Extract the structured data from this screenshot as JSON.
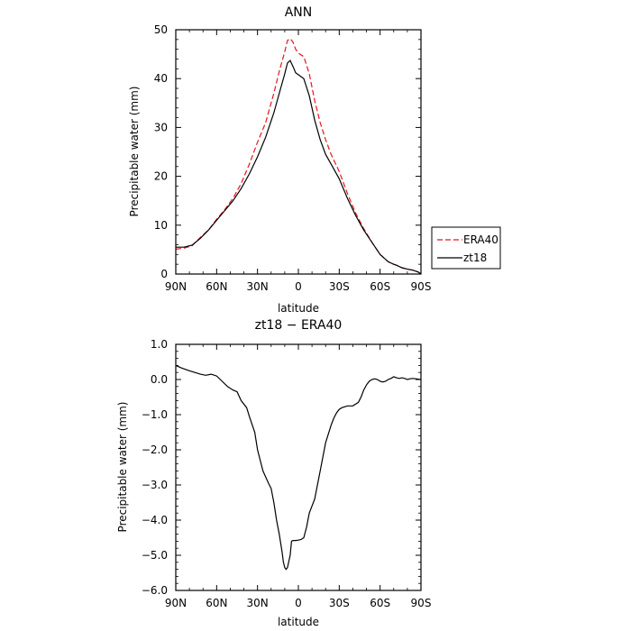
{
  "chart_data": [
    {
      "type": "line",
      "title": "ANN",
      "xlabel": "latitude",
      "ylabel": "Precipitable water (mm)",
      "x_ticks": [
        {
          "value": -90,
          "label": "90N"
        },
        {
          "value": -60,
          "label": "60N"
        },
        {
          "value": -30,
          "label": "30N"
        },
        {
          "value": 0,
          "label": "0"
        },
        {
          "value": 30,
          "label": "30S"
        },
        {
          "value": 60,
          "label": "60S"
        },
        {
          "value": 90,
          "label": "90S"
        }
      ],
      "y_ticks": [
        {
          "value": 0,
          "label": "0"
        },
        {
          "value": 10,
          "label": "10"
        },
        {
          "value": 20,
          "label": "20"
        },
        {
          "value": 30,
          "label": "30"
        },
        {
          "value": 40,
          "label": "40"
        },
        {
          "value": 50,
          "label": "50"
        }
      ],
      "xlim": [
        -90,
        90
      ],
      "ylim": [
        0,
        50
      ],
      "grid": false,
      "legend_position": "right",
      "series": [
        {
          "name": "ERA40",
          "color": "#e8141c",
          "dash": "dashed",
          "x": [
            -90,
            -84,
            -78,
            -72,
            -66,
            -60,
            -54,
            -48,
            -42,
            -36,
            -30,
            -24,
            -18,
            -14,
            -10,
            -8,
            -6,
            -4,
            -2,
            0,
            4,
            8,
            12,
            16,
            20,
            24,
            30,
            36,
            42,
            48,
            54,
            60,
            66,
            70,
            72,
            76,
            80,
            84,
            88,
            90
          ],
          "y": [
            5.1,
            5.3,
            5.8,
            7.5,
            9.0,
            11.2,
            13.2,
            15.5,
            18.5,
            22.5,
            27.0,
            31.0,
            37.0,
            41.5,
            45.5,
            47.8,
            48.2,
            47.5,
            46.0,
            45.2,
            44.5,
            41.0,
            35.5,
            31.0,
            27.5,
            24.5,
            21.0,
            16.5,
            12.5,
            9.3,
            6.5,
            4.0,
            2.5,
            2.0,
            1.8,
            1.3,
            1.0,
            0.8,
            0.4,
            0.0
          ]
        },
        {
          "name": "zt18",
          "color": "#000000",
          "dash": "solid",
          "x": [
            -90,
            -84,
            -78,
            -72,
            -66,
            -60,
            -54,
            -48,
            -42,
            -36,
            -30,
            -24,
            -18,
            -14,
            -10,
            -8,
            -6,
            -4,
            -2,
            0,
            4,
            8,
            12,
            16,
            20,
            24,
            30,
            36,
            42,
            48,
            54,
            60,
            66,
            70,
            72,
            76,
            80,
            84,
            88,
            90
          ],
          "y": [
            5.5,
            5.5,
            5.9,
            7.3,
            9.0,
            11.0,
            13.0,
            15.0,
            17.5,
            20.5,
            24.0,
            28.0,
            33.0,
            37.0,
            41.0,
            43.2,
            43.7,
            42.5,
            41.2,
            40.8,
            40.0,
            36.5,
            31.5,
            27.5,
            24.5,
            22.5,
            19.5,
            15.5,
            12.0,
            9.0,
            6.5,
            4.0,
            2.5,
            2.0,
            1.8,
            1.3,
            1.0,
            0.8,
            0.4,
            0.0
          ]
        }
      ]
    },
    {
      "type": "line",
      "title": "zt18 − ERA40",
      "xlabel": "latitude",
      "ylabel": "Precipitable water (mm)",
      "x_ticks": [
        {
          "value": -90,
          "label": "90N"
        },
        {
          "value": -60,
          "label": "60N"
        },
        {
          "value": -30,
          "label": "30N"
        },
        {
          "value": 0,
          "label": "0"
        },
        {
          "value": 30,
          "label": "30S"
        },
        {
          "value": 60,
          "label": "60S"
        },
        {
          "value": 90,
          "label": "90S"
        }
      ],
      "y_ticks": [
        {
          "value": 1.0,
          "label": "1.0"
        },
        {
          "value": 0.0,
          "label": "0.0"
        },
        {
          "value": -1.0,
          "label": "−1.0"
        },
        {
          "value": -2.0,
          "label": "−2.0"
        },
        {
          "value": -3.0,
          "label": "−3.0"
        },
        {
          "value": -4.0,
          "label": "−4.0"
        },
        {
          "value": -5.0,
          "label": "−5.0"
        },
        {
          "value": -6.0,
          "label": "−6.0"
        }
      ],
      "xlim": [
        -90,
        90
      ],
      "ylim": [
        -6,
        1
      ],
      "grid": false,
      "series": [
        {
          "color": "#000000",
          "dash": "solid",
          "x": [
            -90,
            -86,
            -80,
            -76,
            -72,
            -68,
            -64,
            -60,
            -56,
            -52,
            -48,
            -45,
            -42,
            -38,
            -36,
            -32,
            -30,
            -26,
            -22,
            -20,
            -18,
            -16,
            -14,
            -12,
            -11,
            -10,
            -9,
            -8,
            -6,
            -5,
            -4,
            -2,
            0,
            2,
            4,
            6,
            8,
            12,
            16,
            20,
            24,
            26,
            28,
            30,
            32,
            36,
            40,
            44,
            46,
            48,
            50,
            52,
            54,
            56,
            58,
            60,
            62,
            64,
            66,
            68,
            70,
            72,
            74,
            76,
            78,
            80,
            82,
            84,
            86,
            88,
            90
          ],
          "y": [
            0.4,
            0.33,
            0.25,
            0.2,
            0.15,
            0.12,
            0.15,
            0.1,
            -0.05,
            -0.2,
            -0.3,
            -0.35,
            -0.6,
            -0.8,
            -1.05,
            -1.5,
            -2.0,
            -2.6,
            -2.95,
            -3.1,
            -3.5,
            -4.0,
            -4.4,
            -4.9,
            -5.2,
            -5.35,
            -5.4,
            -5.35,
            -5.0,
            -4.6,
            -4.58,
            -4.58,
            -4.57,
            -4.55,
            -4.5,
            -4.2,
            -3.8,
            -3.4,
            -2.6,
            -1.8,
            -1.3,
            -1.1,
            -0.95,
            -0.85,
            -0.8,
            -0.75,
            -0.75,
            -0.65,
            -0.5,
            -0.3,
            -0.15,
            -0.05,
            0.0,
            0.02,
            0.0,
            -0.05,
            -0.07,
            -0.05,
            0.0,
            0.03,
            0.08,
            0.05,
            0.03,
            0.05,
            0.03,
            0.0,
            0.02,
            0.03,
            0.02,
            0.01,
            0.0
          ]
        }
      ]
    }
  ]
}
